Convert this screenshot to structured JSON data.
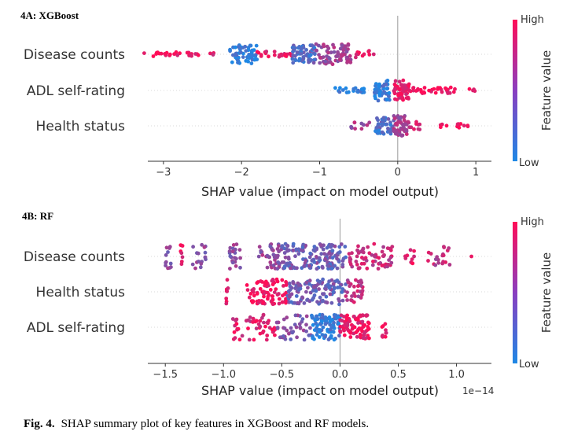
{
  "caption": {
    "label": "Fig. 4.",
    "text": "SHAP summary plot of key features in XGBoost and RF models."
  },
  "colors": {
    "low": "#1e88e5",
    "high": "#ff0d57",
    "zero_line": "#999999",
    "grid": "#cccccc"
  },
  "chart_data": [
    {
      "type": "scatter",
      "subtype": "shap-beeswarm",
      "panel_title": "4A: XGBoost",
      "xlabel": "SHAP value (impact on model output)",
      "x_ticks": [
        -3,
        -2,
        -1,
        0,
        1
      ],
      "x_tick_labels": [
        "−3",
        "−2",
        "−1",
        "0",
        "1"
      ],
      "xlim": [
        -3.2,
        1.2
      ],
      "offset_text": "",
      "colorbar": {
        "high_label": "High",
        "low_label": "Low",
        "title": "Feature value"
      },
      "features": [
        {
          "name": "Disease counts",
          "clusters": [
            {
              "x_min": -3.25,
              "x_max": -2.55,
              "count": 26,
              "spread": 0.25,
              "value": 0.95
            },
            {
              "x_min": -2.5,
              "x_max": -2.35,
              "count": 3,
              "spread": 0.2,
              "value": 0.9
            },
            {
              "x_min": -2.15,
              "x_max": -1.8,
              "count": 55,
              "spread": 0.9,
              "value": 0.05
            },
            {
              "x_min": -1.8,
              "x_max": -1.35,
              "count": 25,
              "spread": 0.3,
              "value": 0.9
            },
            {
              "x_min": -1.35,
              "x_max": -1.05,
              "count": 60,
              "spread": 0.9,
              "value": 0.25
            },
            {
              "x_min": -1.05,
              "x_max": -0.6,
              "count": 70,
              "spread": 1.0,
              "value": 0.55
            },
            {
              "x_min": -0.55,
              "x_max": -0.35,
              "count": 10,
              "spread": 0.4,
              "value": 0.95
            },
            {
              "x_min": -0.32,
              "x_max": -0.28,
              "count": 1,
              "spread": 0.0,
              "value": 0.95
            }
          ]
        },
        {
          "name": "ADL self-rating",
          "clusters": [
            {
              "x_min": -0.8,
              "x_max": -0.3,
              "count": 20,
              "spread": 0.25,
              "value": 0.05
            },
            {
              "x_min": -0.3,
              "x_max": -0.1,
              "count": 45,
              "spread": 1.0,
              "value": 0.1
            },
            {
              "x_min": -0.05,
              "x_max": 0.15,
              "count": 55,
              "spread": 1.0,
              "value": 0.9
            },
            {
              "x_min": 0.15,
              "x_max": 0.75,
              "count": 35,
              "spread": 0.3,
              "value": 0.95
            },
            {
              "x_min": 0.85,
              "x_max": 1.0,
              "count": 4,
              "spread": 0.15,
              "value": 0.95
            }
          ]
        },
        {
          "name": "Health status",
          "clusters": [
            {
              "x_min": -0.6,
              "x_max": -0.35,
              "count": 12,
              "spread": 0.35,
              "value": 0.6
            },
            {
              "x_min": -0.3,
              "x_max": -0.05,
              "count": 40,
              "spread": 0.8,
              "value": 0.2
            },
            {
              "x_min": -0.05,
              "x_max": 0.15,
              "count": 55,
              "spread": 1.0,
              "value": 0.6
            },
            {
              "x_min": 0.15,
              "x_max": 0.3,
              "count": 8,
              "spread": 0.4,
              "value": 0.9
            },
            {
              "x_min": 0.5,
              "x_max": 0.9,
              "count": 14,
              "spread": 0.2,
              "value": 0.95
            }
          ]
        }
      ]
    },
    {
      "type": "scatter",
      "subtype": "shap-beeswarm",
      "panel_title": "4B: RF",
      "xlabel": "SHAP value (impact on model output)",
      "x_ticks": [
        -1.5,
        -1.0,
        -0.5,
        0.0,
        0.5,
        1.0
      ],
      "x_tick_labels": [
        "−1.5",
        "−1.0",
        "−0.5",
        "0.0",
        "0.5",
        "1.0"
      ],
      "xlim": [
        -1.65,
        1.3
      ],
      "offset_text": "1e−14",
      "colorbar": {
        "high_label": "High",
        "low_label": "Low",
        "title": "Feature value"
      },
      "features": [
        {
          "name": "Disease counts",
          "clusters": [
            {
              "x_min": -1.5,
              "x_max": -1.45,
              "count": 12,
              "spread": 1.0,
              "value": 0.5
            },
            {
              "x_min": -1.37,
              "x_max": -1.35,
              "count": 8,
              "spread": 0.9,
              "value": 0.95
            },
            {
              "x_min": -1.28,
              "x_max": -1.15,
              "count": 18,
              "spread": 1.0,
              "value": 0.5
            },
            {
              "x_min": -0.95,
              "x_max": -0.85,
              "count": 22,
              "spread": 1.0,
              "value": 0.5
            },
            {
              "x_min": -0.7,
              "x_max": -0.5,
              "count": 40,
              "spread": 1.0,
              "value": 0.5
            },
            {
              "x_min": -0.5,
              "x_max": 0.05,
              "count": 150,
              "spread": 1.0,
              "value": 0.35
            },
            {
              "x_min": 0.05,
              "x_max": 0.45,
              "count": 70,
              "spread": 1.0,
              "value": 0.75
            },
            {
              "x_min": 0.55,
              "x_max": 0.65,
              "count": 10,
              "spread": 0.6,
              "value": 0.9
            },
            {
              "x_min": 0.75,
              "x_max": 0.95,
              "count": 20,
              "spread": 0.8,
              "value": 0.7
            },
            {
              "x_min": 1.1,
              "x_max": 1.15,
              "count": 1,
              "spread": 0.0,
              "value": 0.95
            }
          ]
        },
        {
          "name": "Health status",
          "clusters": [
            {
              "x_min": -0.98,
              "x_max": -0.96,
              "count": 8,
              "spread": 1.0,
              "value": 0.95
            },
            {
              "x_min": -0.8,
              "x_max": -0.45,
              "count": 80,
              "spread": 1.0,
              "value": 0.95
            },
            {
              "x_min": -0.45,
              "x_max": 0.05,
              "count": 120,
              "spread": 1.0,
              "value": 0.35
            },
            {
              "x_min": 0.05,
              "x_max": 0.2,
              "count": 30,
              "spread": 1.0,
              "value": 0.7
            }
          ]
        },
        {
          "name": "ADL self-rating",
          "clusters": [
            {
              "x_min": -0.95,
              "x_max": -0.55,
              "count": 50,
              "spread": 1.0,
              "value": 0.85
            },
            {
              "x_min": -0.55,
              "x_max": -0.25,
              "count": 40,
              "spread": 1.0,
              "value": 0.45
            },
            {
              "x_min": -0.25,
              "x_max": 0.0,
              "count": 90,
              "spread": 1.0,
              "value": 0.1
            },
            {
              "x_min": 0.0,
              "x_max": 0.25,
              "count": 90,
              "spread": 1.0,
              "value": 0.9
            },
            {
              "x_min": 0.36,
              "x_max": 0.4,
              "count": 10,
              "spread": 1.0,
              "value": 0.95
            }
          ]
        }
      ]
    }
  ]
}
